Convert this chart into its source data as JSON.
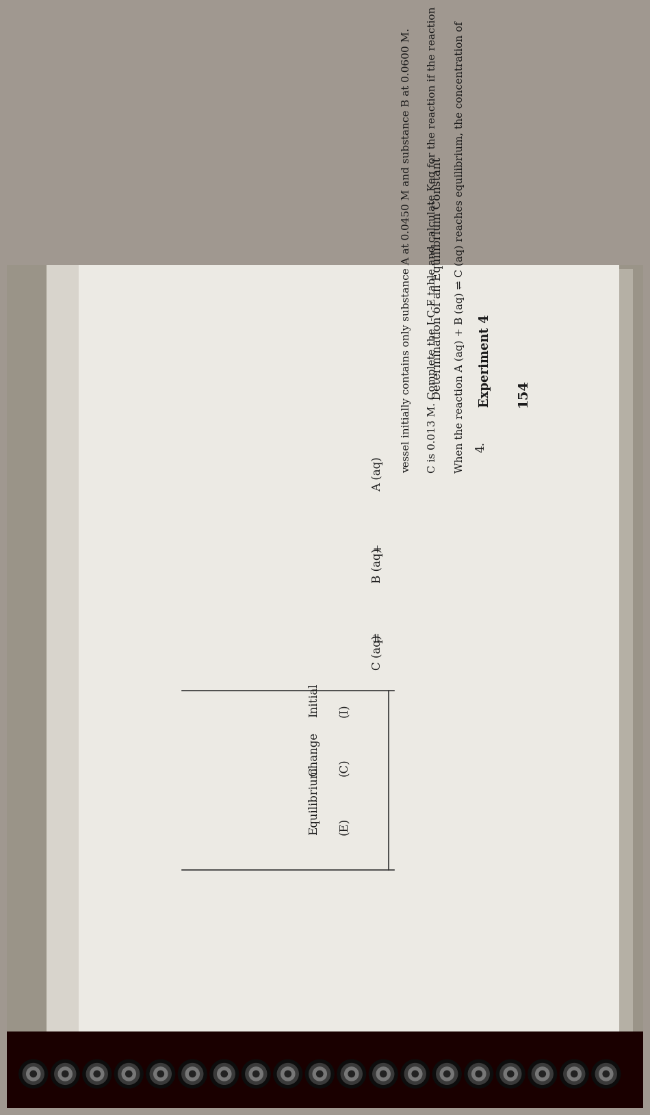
{
  "page_number": "154",
  "header_bold": "Experiment 4",
  "header_normal": "Determination of an Equilibrium Constant",
  "question_number": "4.",
  "q_line1": "When the reaction A (aq) + B (aq) ⇌ C (aq) reaches equilibrium, the concentration of",
  "q_line2": "C is 0.013 M. Complete the I-C-E table and calculate Keq for the reaction if the reaction",
  "q_line3": "vessel initially contains only substance A at 0.0450 M and substance B at 0.0600 M.",
  "col_A": "A (aq)",
  "col_plus": "+",
  "col_B": "B (aq)",
  "col_eq": "⇌",
  "col_C": "C (aq)",
  "row1_label": "(I)",
  "row1_name": "Initial",
  "row2_label": "(C)",
  "row2_name": "Change",
  "row3_label": "(E)",
  "row3_name": "Equilibrium",
  "bg_outer": "#a09890",
  "bg_page": "#e8e5de",
  "bg_shadow": "#b8b4aa",
  "text_color": "#1a1a1a",
  "line_color": "#333333",
  "spiral_dark": "#1a1a1a",
  "spiral_mid": "#444444",
  "spiral_light": "#888888"
}
